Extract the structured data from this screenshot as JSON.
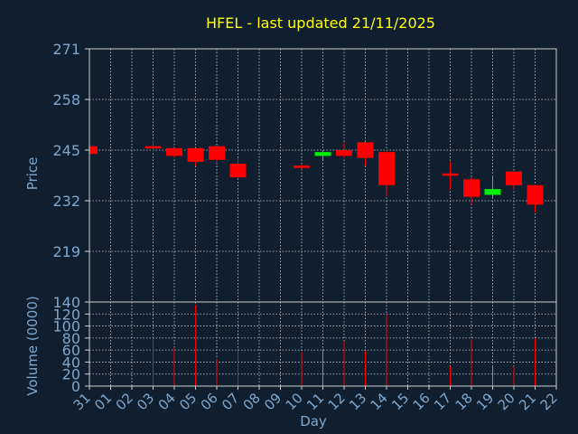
{
  "chart_data": {
    "type": "candlestick",
    "title": "HFEL - last updated 21/11/2025",
    "xlabel": "Day",
    "price_panel": {
      "ylabel": "Price",
      "ylim": [
        206,
        271
      ],
      "yticks": [
        271,
        258,
        245,
        232,
        219
      ]
    },
    "volume_panel": {
      "ylabel": "Volume (0000)",
      "ylim": [
        0,
        140
      ],
      "yticks": [
        140,
        120,
        100,
        80,
        60,
        40,
        20,
        0
      ]
    },
    "x_ticks": [
      "31",
      "01",
      "02",
      "03",
      "04",
      "05",
      "06",
      "07",
      "08",
      "09",
      "10",
      "11",
      "12",
      "13",
      "14",
      "15",
      "16",
      "17",
      "18",
      "19",
      "20",
      "21",
      "22"
    ],
    "grid": true,
    "colors": {
      "background": "#0f1f30",
      "up": "#00ee00",
      "down": "#ff0000",
      "title": "#ffff00",
      "axis_text": "#7ea6cc",
      "grid": "#cccccc"
    },
    "candles": [
      {
        "day": "31",
        "open": 246,
        "high": 246,
        "low": 244,
        "close": 244,
        "volume": 0
      },
      {
        "day": "03",
        "open": 246,
        "high": 247.5,
        "low": 244.5,
        "close": 246,
        "volume": 80
      },
      {
        "day": "04",
        "open": 245.5,
        "high": 245.5,
        "low": 243,
        "close": 243.5,
        "volume": 63
      },
      {
        "day": "05",
        "open": 245.5,
        "high": 245.5,
        "low": 241,
        "close": 242,
        "volume": 135
      },
      {
        "day": "06",
        "open": 246,
        "high": 246,
        "low": 242,
        "close": 242.5,
        "volume": 45
      },
      {
        "day": "07",
        "open": 241.5,
        "high": 243,
        "low": 237.5,
        "close": 238,
        "volume": 60
      },
      {
        "day": "10",
        "open": 241,
        "high": 241.5,
        "low": 240,
        "close": 240.5,
        "volume": 57
      },
      {
        "day": "11",
        "open": 243.5,
        "high": 245,
        "low": 242.5,
        "close": 244.5,
        "volume": 62
      },
      {
        "day": "12",
        "open": 245,
        "high": 247,
        "low": 243,
        "close": 243.5,
        "volume": 75
      },
      {
        "day": "13",
        "open": 247,
        "high": 247,
        "low": 241,
        "close": 243,
        "volume": 58
      },
      {
        "day": "14",
        "open": 244.5,
        "high": 245,
        "low": 233,
        "close": 236,
        "volume": 120
      },
      {
        "day": "17",
        "open": 239,
        "high": 242,
        "low": 235,
        "close": 238.5,
        "volume": 33
      },
      {
        "day": "18",
        "open": 237.5,
        "high": 238,
        "low": 231,
        "close": 233,
        "volume": 78
      },
      {
        "day": "19",
        "open": 233.5,
        "high": 238.5,
        "low": 232.5,
        "close": 235,
        "volume": 35
      },
      {
        "day": "20",
        "open": 239.5,
        "high": 239.5,
        "low": 235,
        "close": 236,
        "volume": 33
      },
      {
        "day": "21",
        "open": 236,
        "high": 236,
        "low": 229,
        "close": 231,
        "volume": 79
      }
    ]
  }
}
